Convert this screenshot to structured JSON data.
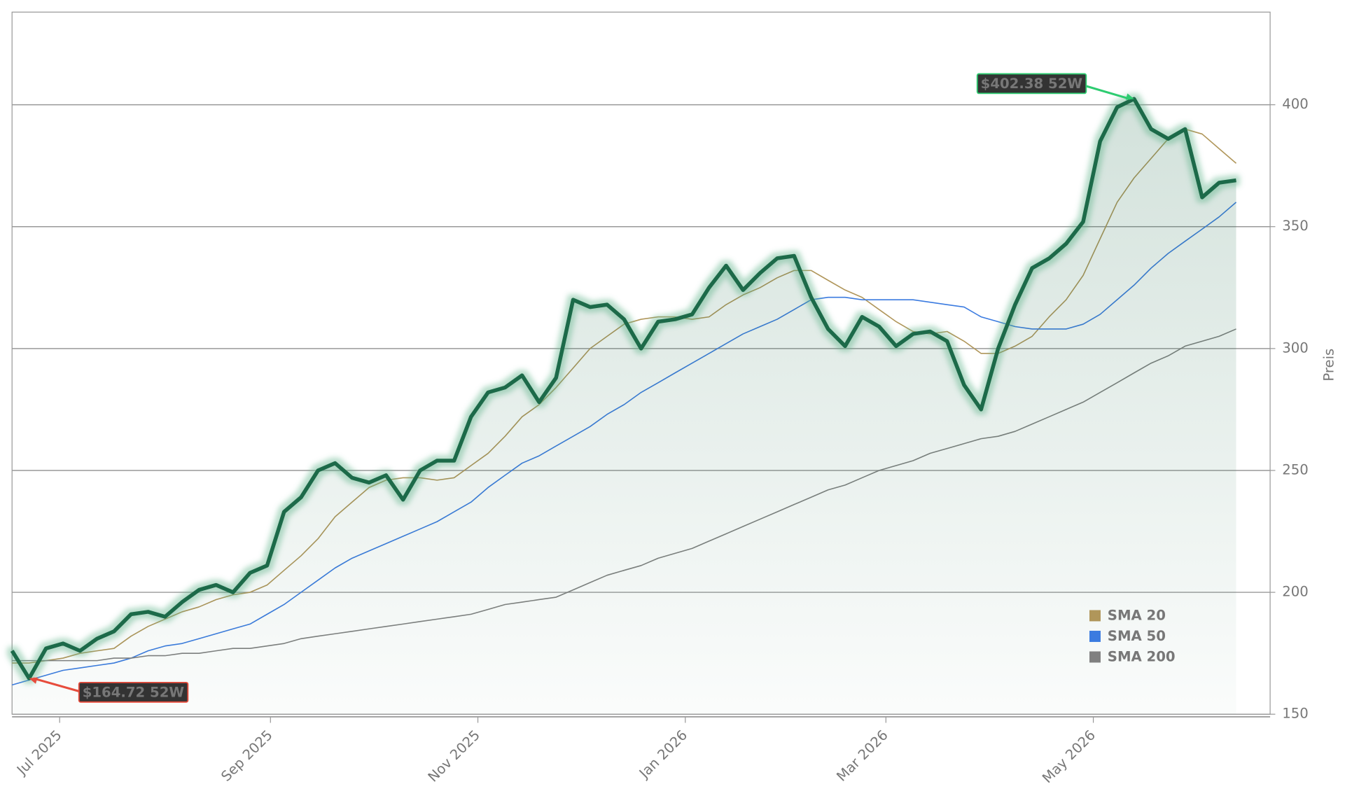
{
  "chart_data": {
    "type": "line",
    "ylabel": "Preis",
    "xlim": [
      0,
      74
    ],
    "xticks": [
      {
        "value": 2.8,
        "label": "Jul 2025"
      },
      {
        "value": 15.2,
        "label": "Sep 2025"
      },
      {
        "value": 27.4,
        "label": "Nov 2025"
      },
      {
        "value": 39.6,
        "label": "Jan 2026"
      },
      {
        "value": 51.4,
        "label": "Mar 2026"
      },
      {
        "value": 63.6,
        "label": "May 2026"
      }
    ],
    "ylim": [
      150,
      438
    ],
    "yticks": [
      150,
      200,
      250,
      300,
      350,
      400
    ],
    "grid": true,
    "legend": "lower right",
    "series": [
      {
        "color": "#1f6b4a",
        "fill": true,
        "values": [
          176,
          164.72,
          177,
          179,
          176,
          181,
          184,
          191,
          192,
          190,
          196,
          201,
          203,
          200,
          208,
          211,
          233,
          239,
          250,
          253,
          247,
          245,
          248,
          238,
          250,
          254,
          254,
          272,
          282,
          284,
          289,
          278,
          288,
          320,
          317,
          318,
          312,
          300,
          311,
          312,
          314,
          325,
          334,
          324,
          331,
          337,
          338,
          321,
          308,
          301,
          313,
          309,
          301,
          306,
          307,
          303,
          285,
          275,
          300,
          318,
          333,
          337,
          343,
          352,
          385,
          399,
          402.38,
          390,
          386,
          390,
          362,
          368,
          369
        ]
      },
      {
        "name": "SMA 20",
        "color": "#b0965a",
        "values": [
          171,
          171,
          172,
          173,
          175,
          176,
          177,
          182,
          186,
          189,
          192,
          194,
          197,
          199,
          200,
          203,
          209,
          215,
          222,
          231,
          237,
          243,
          246,
          247,
          247,
          246,
          247,
          252,
          257,
          264,
          272,
          277,
          284,
          292,
          300,
          305,
          310,
          312,
          313,
          313,
          312,
          313,
          318,
          322,
          325,
          329,
          332,
          332,
          328,
          324,
          321,
          316,
          311,
          307,
          306,
          307,
          303,
          298,
          298,
          301,
          305,
          313,
          320,
          330,
          345,
          360,
          370,
          378,
          386,
          390,
          388,
          382,
          376
        ]
      },
      {
        "name": "SMA 50",
        "color": "#3b7be0",
        "values": [
          162,
          164,
          166,
          168,
          169,
          170,
          171,
          173,
          176,
          178,
          179,
          181,
          183,
          185,
          187,
          191,
          195,
          200,
          205,
          210,
          214,
          217,
          220,
          223,
          226,
          229,
          233,
          237,
          243,
          248,
          253,
          256,
          260,
          264,
          268,
          273,
          277,
          282,
          286,
          290,
          294,
          298,
          302,
          306,
          309,
          312,
          316,
          320,
          321,
          321,
          320,
          320,
          320,
          320,
          319,
          318,
          317,
          313,
          311,
          309,
          308,
          308,
          308,
          310,
          314,
          320,
          326,
          333,
          339,
          344,
          349,
          354,
          360
        ]
      },
      {
        "name": "SMA 200",
        "color": "#808080",
        "values": [
          172,
          172,
          172,
          172,
          172,
          172,
          173,
          173,
          174,
          174,
          175,
          175,
          176,
          177,
          177,
          178,
          179,
          181,
          182,
          183,
          184,
          185,
          186,
          187,
          188,
          189,
          190,
          191,
          193,
          195,
          196,
          197,
          198,
          201,
          204,
          207,
          209,
          211,
          214,
          216,
          218,
          221,
          224,
          227,
          230,
          233,
          236,
          239,
          242,
          244,
          247,
          250,
          252,
          254,
          257,
          259,
          261,
          263,
          264,
          266,
          269,
          272,
          275,
          278,
          282,
          286,
          290,
          294,
          297,
          301,
          303,
          305,
          308
        ]
      }
    ],
    "annotations": [
      {
        "label": "$402.38 52W",
        "x": 66,
        "value": 402.38,
        "color": "#2ecc71"
      },
      {
        "label": "$164.72 52W",
        "x": 1,
        "value": 164.72,
        "color": "#e74c3c"
      }
    ]
  }
}
